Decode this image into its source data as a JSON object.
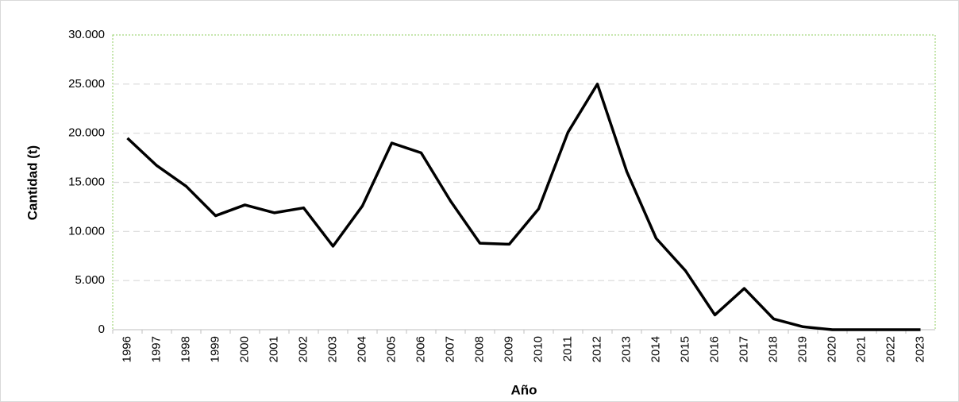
{
  "chart_data": {
    "type": "line",
    "x_label": "Año",
    "y_label": "Cantidad (t)",
    "categories": [
      "1996",
      "1997",
      "1998",
      "1999",
      "2000",
      "2001",
      "2002",
      "2003",
      "2004",
      "2005",
      "2006",
      "2007",
      "2008",
      "2009",
      "2010",
      "2011",
      "2012",
      "2013",
      "2014",
      "2015",
      "2016",
      "2017",
      "2018",
      "2019",
      "2020",
      "2021",
      "2022",
      "2023"
    ],
    "values": [
      19500,
      16700,
      14600,
      11600,
      12700,
      11900,
      12400,
      8500,
      12600,
      19000,
      18000,
      13100,
      8800,
      8700,
      12300,
      20100,
      25000,
      16100,
      9300,
      6000,
      1500,
      4200,
      1100,
      300,
      0,
      0,
      0,
      0
    ],
    "color": "#000000",
    "ylim": [
      0,
      30000
    ],
    "yticks": [
      0,
      {
        "value": 5000,
        "label": "5.000"
      },
      {
        "value": 10000,
        "label": "10.000"
      },
      {
        "value": 15000,
        "label": "15.000"
      },
      {
        "value": 20000,
        "label": "20.000"
      },
      {
        "value": 25000,
        "label": "25.000"
      },
      {
        "value": 30000,
        "label": "30.000"
      }
    ],
    "grid": true
  }
}
